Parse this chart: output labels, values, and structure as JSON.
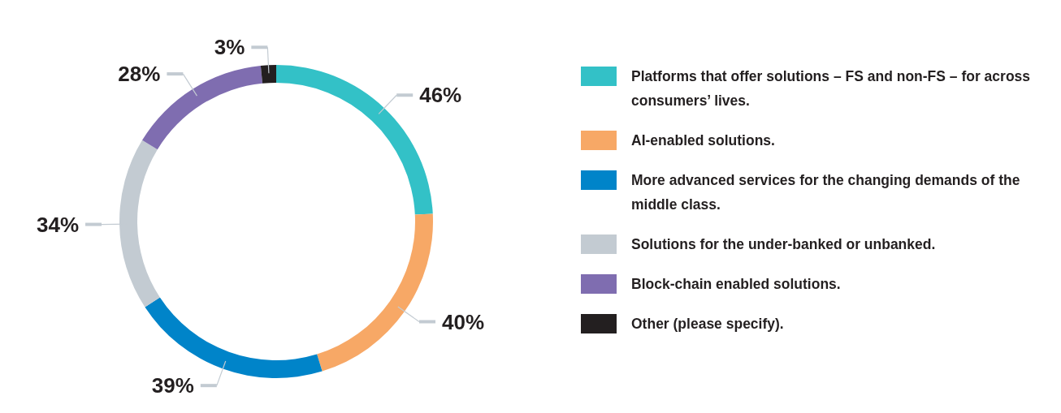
{
  "chart_data": {
    "type": "donut",
    "categories": [
      "Platforms that offer solutions – FS and non-FS – for across consumers’ lives.",
      "AI-enabled solutions.",
      "More advanced services for the changing demands of the middle class.",
      "Solutions for the under-banked or unbanked.",
      "Block-chain enabled solutions.",
      "Other (please specify)."
    ],
    "values": [
      46,
      40,
      39,
      34,
      28,
      3
    ],
    "value_labels": [
      "46%",
      "40%",
      "39%",
      "34%",
      "28%",
      "3%"
    ],
    "colors": [
      "#33c1c7",
      "#f7a866",
      "#0084c9",
      "#c3cbd2",
      "#7f6db0",
      "#231f20"
    ],
    "legend": "right"
  }
}
